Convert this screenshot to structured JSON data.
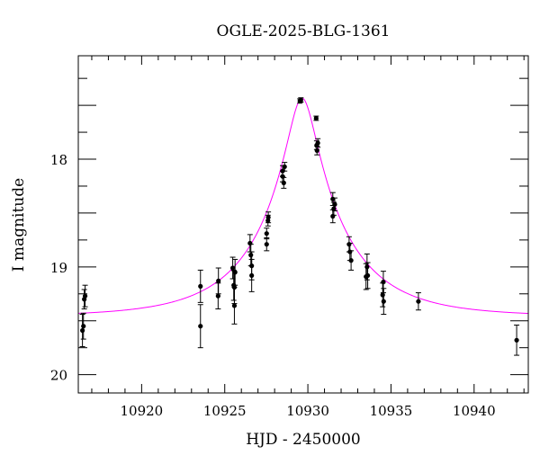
{
  "chart_data": {
    "type": "scatter",
    "title": "OGLE-2025-BLG-1361",
    "xlabel": "HJD - 2450000",
    "ylabel": "I magnitude",
    "xlim": [
      10916.19,
      10943.26
    ],
    "ylim": [
      20.17,
      17.04
    ],
    "y_inverted": true,
    "x_ticks": [
      10920,
      10925,
      10930,
      10935,
      10940
    ],
    "y_ticks": [
      18,
      19,
      20
    ],
    "grid": false,
    "colors": {
      "data": "#000000",
      "model": "#ff00ff"
    },
    "points": [
      {
        "x": 10916.44,
        "y": 19.59,
        "err": 0.15
      },
      {
        "x": 10916.5,
        "y": 19.55,
        "err": 0.12
      },
      {
        "x": 10916.55,
        "y": 19.3,
        "err": 0.09
      },
      {
        "x": 10916.6,
        "y": 19.27,
        "err": 0.1
      },
      {
        "x": 10923.54,
        "y": 19.18,
        "err": 0.15
      },
      {
        "x": 10923.54,
        "y": 19.55,
        "err": 0.2
      },
      {
        "x": 10924.62,
        "y": 19.13,
        "err": 0.12
      },
      {
        "x": 10924.6,
        "y": 19.27,
        "err": 0.12
      },
      {
        "x": 10925.48,
        "y": 19.01,
        "err": 0.1
      },
      {
        "x": 10925.54,
        "y": 19.17,
        "err": 0.14
      },
      {
        "x": 10925.58,
        "y": 19.19,
        "err": 0.15
      },
      {
        "x": 10925.58,
        "y": 19.36,
        "err": 0.17
      },
      {
        "x": 10925.62,
        "y": 19.05,
        "err": 0.12
      },
      {
        "x": 10926.52,
        "y": 18.78,
        "err": 0.08
      },
      {
        "x": 10926.57,
        "y": 18.89,
        "err": 0.1
      },
      {
        "x": 10926.62,
        "y": 18.99,
        "err": 0.13
      },
      {
        "x": 10926.62,
        "y": 19.08,
        "err": 0.15
      },
      {
        "x": 10927.52,
        "y": 18.79,
        "err": 0.06
      },
      {
        "x": 10927.52,
        "y": 18.69,
        "err": 0.05
      },
      {
        "x": 10927.6,
        "y": 18.57,
        "err": 0.05
      },
      {
        "x": 10927.62,
        "y": 18.54,
        "err": 0.05
      },
      {
        "x": 10928.48,
        "y": 18.11,
        "err": 0.05
      },
      {
        "x": 10928.48,
        "y": 18.16,
        "err": 0.05
      },
      {
        "x": 10928.55,
        "y": 18.22,
        "err": 0.05
      },
      {
        "x": 10928.6,
        "y": 18.07,
        "err": 0.04
      },
      {
        "x": 10929.52,
        "y": 17.46,
        "err": 0.02
      },
      {
        "x": 10929.58,
        "y": 17.45,
        "err": 0.02
      },
      {
        "x": 10930.5,
        "y": 17.62,
        "err": 0.02
      },
      {
        "x": 10930.53,
        "y": 17.87,
        "err": 0.04
      },
      {
        "x": 10930.55,
        "y": 17.92,
        "err": 0.04
      },
      {
        "x": 10930.6,
        "y": 17.85,
        "err": 0.04
      },
      {
        "x": 10931.5,
        "y": 18.37,
        "err": 0.06
      },
      {
        "x": 10931.56,
        "y": 18.46,
        "err": 0.06
      },
      {
        "x": 10931.62,
        "y": 18.42,
        "err": 0.06
      },
      {
        "x": 10931.5,
        "y": 18.53,
        "err": 0.06
      },
      {
        "x": 10932.48,
        "y": 18.79,
        "err": 0.07
      },
      {
        "x": 10932.53,
        "y": 18.86,
        "err": 0.08
      },
      {
        "x": 10932.6,
        "y": 18.94,
        "err": 0.09
      },
      {
        "x": 10933.56,
        "y": 19.0,
        "err": 0.12
      },
      {
        "x": 10933.5,
        "y": 19.09,
        "err": 0.12
      },
      {
        "x": 10933.6,
        "y": 19.08,
        "err": 0.12
      },
      {
        "x": 10934.54,
        "y": 19.14,
        "err": 0.1
      },
      {
        "x": 10934.5,
        "y": 19.26,
        "err": 0.11
      },
      {
        "x": 10934.56,
        "y": 19.32,
        "err": 0.12
      },
      {
        "x": 10936.65,
        "y": 19.32,
        "err": 0.08
      },
      {
        "x": 10942.56,
        "y": 19.68,
        "err": 0.14
      }
    ],
    "model": {
      "type": "point-lens",
      "t0": 10929.65,
      "u0": 0.156,
      "tE": 5.2,
      "baseline": 19.46
    }
  }
}
